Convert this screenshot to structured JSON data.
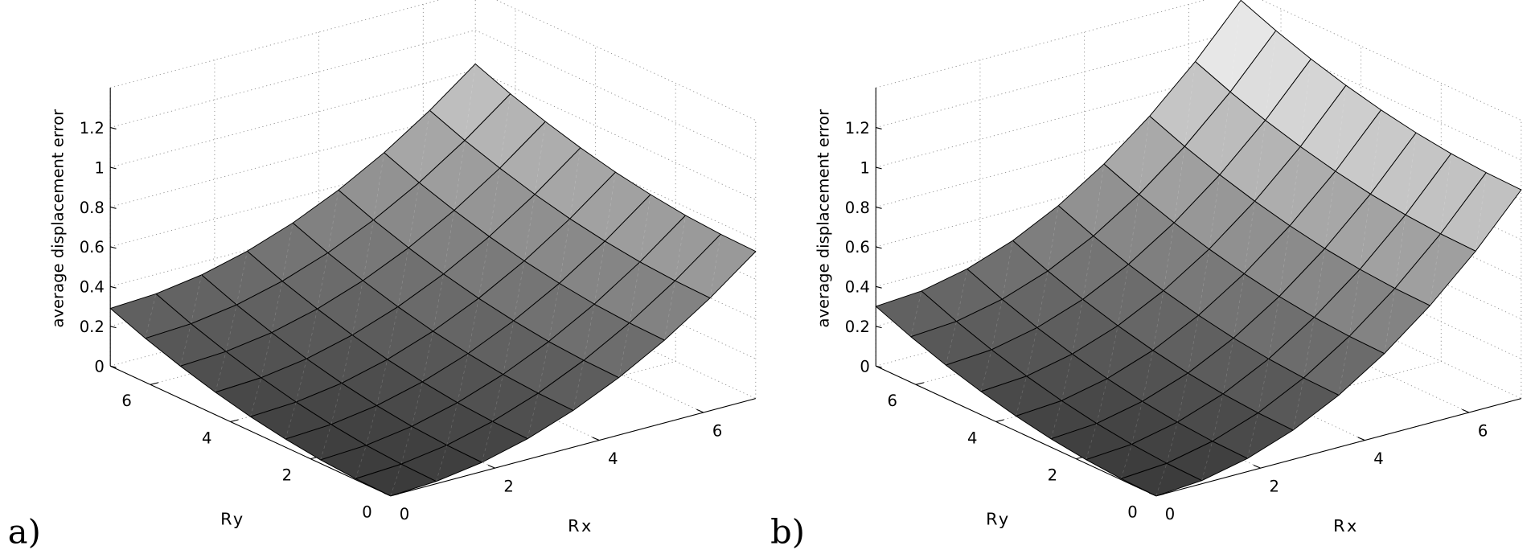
{
  "colors": {
    "low": "#3a3a3a",
    "high": "#ffffff",
    "edge": "#000000",
    "grid": "#888888"
  },
  "chart_data": [
    {
      "type": "surface",
      "panel_label": "a)",
      "xlabel": "Rx",
      "ylabel": "Ry",
      "zlabel": "average displacement error",
      "x_ticks": [
        "0",
        "2",
        "4",
        "6"
      ],
      "y_ticks": [
        "0",
        "2",
        "4",
        "6"
      ],
      "z_ticks": [
        "0",
        "0.2",
        "0.4",
        "0.6",
        "0.8",
        "1",
        "1.2"
      ],
      "xlim": [
        0,
        7
      ],
      "ylim": [
        0,
        7
      ],
      "zlim": [
        0,
        1.4
      ],
      "grid": true,
      "grid_x": [
        0,
        0.875,
        1.75,
        2.625,
        3.5,
        4.375,
        5.25,
        6.125,
        7
      ],
      "grid_y": [
        0,
        0.875,
        1.75,
        2.625,
        3.5,
        4.375,
        5.25,
        6.125,
        7
      ],
      "z_profile_along_rx_at_ry0": [
        0,
        0.012,
        0.046,
        0.104,
        0.185,
        0.289,
        0.416,
        0.567,
        0.74
      ],
      "z_profile_along_ry_at_rx0": [
        0,
        0.005,
        0.018,
        0.041,
        0.072,
        0.113,
        0.163,
        0.221,
        0.29
      ],
      "surface_model": "additive: z(i,j) = z_profile_along_rx[i] + z_profile_along_ry[j]"
    },
    {
      "type": "surface",
      "panel_label": "b)",
      "xlabel": "Rx",
      "ylabel": "Ry",
      "zlabel": "average displacement error",
      "x_ticks": [
        "0",
        "2",
        "4",
        "6"
      ],
      "y_ticks": [
        "0",
        "2",
        "4",
        "6"
      ],
      "z_ticks": [
        "0",
        "0.2",
        "0.4",
        "0.6",
        "0.8",
        "1",
        "1.2"
      ],
      "xlim": [
        0,
        7
      ],
      "ylim": [
        0,
        7
      ],
      "zlim": [
        0,
        1.4
      ],
      "grid": true,
      "grid_x": [
        0,
        0.875,
        1.75,
        2.625,
        3.5,
        4.375,
        5.25,
        6.125,
        7
      ],
      "grid_y": [
        0,
        0.875,
        1.75,
        2.625,
        3.5,
        4.375,
        5.25,
        6.125,
        7
      ],
      "z_profile_along_rx_at_ry0": [
        0,
        0.016,
        0.066,
        0.147,
        0.262,
        0.41,
        0.59,
        0.803,
        1.05
      ],
      "z_profile_along_ry_at_rx0": [
        0,
        0.005,
        0.019,
        0.042,
        0.075,
        0.117,
        0.168,
        0.229,
        0.3
      ],
      "surface_model": "additive: z(i,j) = z_profile_along_rx[i] + z_profile_along_ry[j]"
    }
  ]
}
